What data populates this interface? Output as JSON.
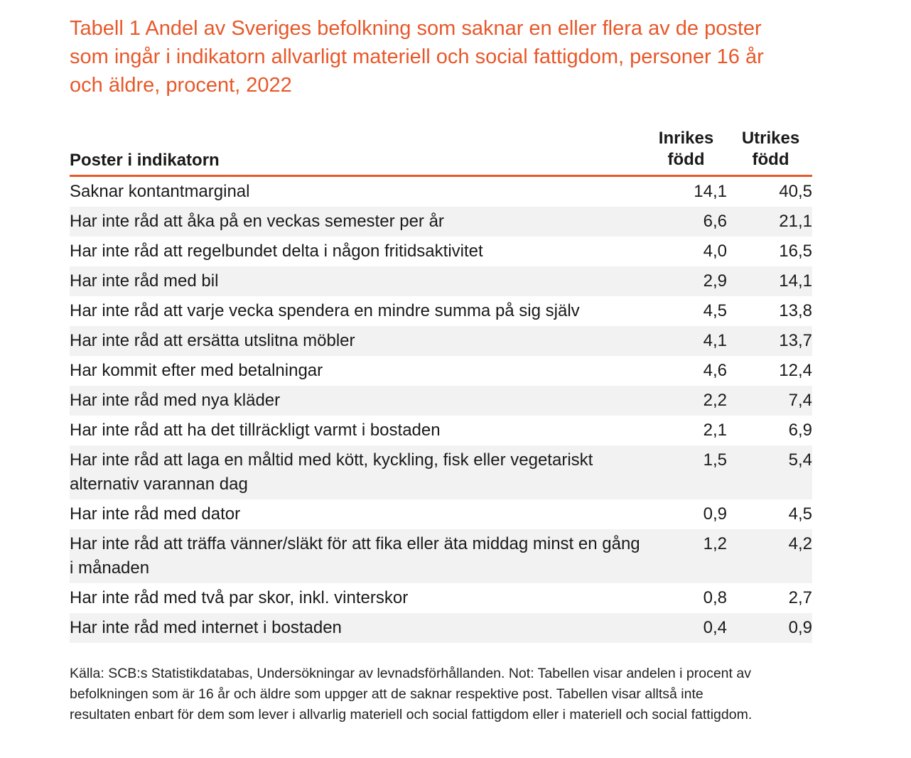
{
  "title": "Tabell 1 Andel av Sveriges befolkning som saknar en eller flera av de poster som ingår i indikatorn allvarligt materiell och social fattigdom, personer 16 år och äldre, procent, 2022",
  "table": {
    "headers": {
      "label": "Poster i indikatorn",
      "col1_line1": "Inrikes",
      "col1_line2": "född",
      "col2_line1": "Utrikes",
      "col2_line2": "född"
    },
    "rows": [
      {
        "label": "Saknar kontantmarginal",
        "inrikes": "14,1",
        "utrikes": "40,5"
      },
      {
        "label": "Har inte råd att åka på en veckas semester per år",
        "inrikes": "6,6",
        "utrikes": "21,1"
      },
      {
        "label": "Har inte råd att regelbundet delta i någon fritidsaktivitet",
        "inrikes": "4,0",
        "utrikes": "16,5"
      },
      {
        "label": "Har inte råd med bil",
        "inrikes": "2,9",
        "utrikes": "14,1"
      },
      {
        "label": "Har inte råd att varje vecka spendera en mindre summa på sig själv",
        "inrikes": "4,5",
        "utrikes": "13,8"
      },
      {
        "label": "Har inte råd att ersätta utslitna möbler",
        "inrikes": "4,1",
        "utrikes": "13,7"
      },
      {
        "label": "Har kommit efter med betalningar",
        "inrikes": "4,6",
        "utrikes": "12,4"
      },
      {
        "label": "Har inte råd med nya kläder",
        "inrikes": "2,2",
        "utrikes": "7,4"
      },
      {
        "label": "Har inte råd att ha det tillräckligt varmt i bostaden",
        "inrikes": "2,1",
        "utrikes": "6,9"
      },
      {
        "label": "Har inte råd att laga en måltid med kött, kyckling, fisk eller vegetariskt alternativ varannan dag",
        "inrikes": "1,5",
        "utrikes": "5,4"
      },
      {
        "label": "Har inte råd med dator",
        "inrikes": "0,9",
        "utrikes": "4,5"
      },
      {
        "label": "Har inte råd att träffa vänner/släkt för att fika eller äta middag minst en gång i månaden",
        "inrikes": "1,2",
        "utrikes": "4,2"
      },
      {
        "label": "Har inte råd med två par skor, inkl. vinterskor",
        "inrikes": "0,8",
        "utrikes": "2,7"
      },
      {
        "label": "Har inte råd med internet i bostaden",
        "inrikes": "0,4",
        "utrikes": "0,9"
      }
    ]
  },
  "source": "Källa: SCB:s Statistikdatabas, Undersökningar av levnadsförhållanden. Not: Tabellen visar andelen i procent av befolkningen som är 16 år och äldre som uppger att de saknar respektive post. Tabellen visar alltså inte resultaten enbart för dem som lever i allvarlig materiell och social fattigdom eller i materiell och social fattigdom.",
  "colors": {
    "accent": "#e8582a",
    "row_shade": "#f2f2f2"
  }
}
